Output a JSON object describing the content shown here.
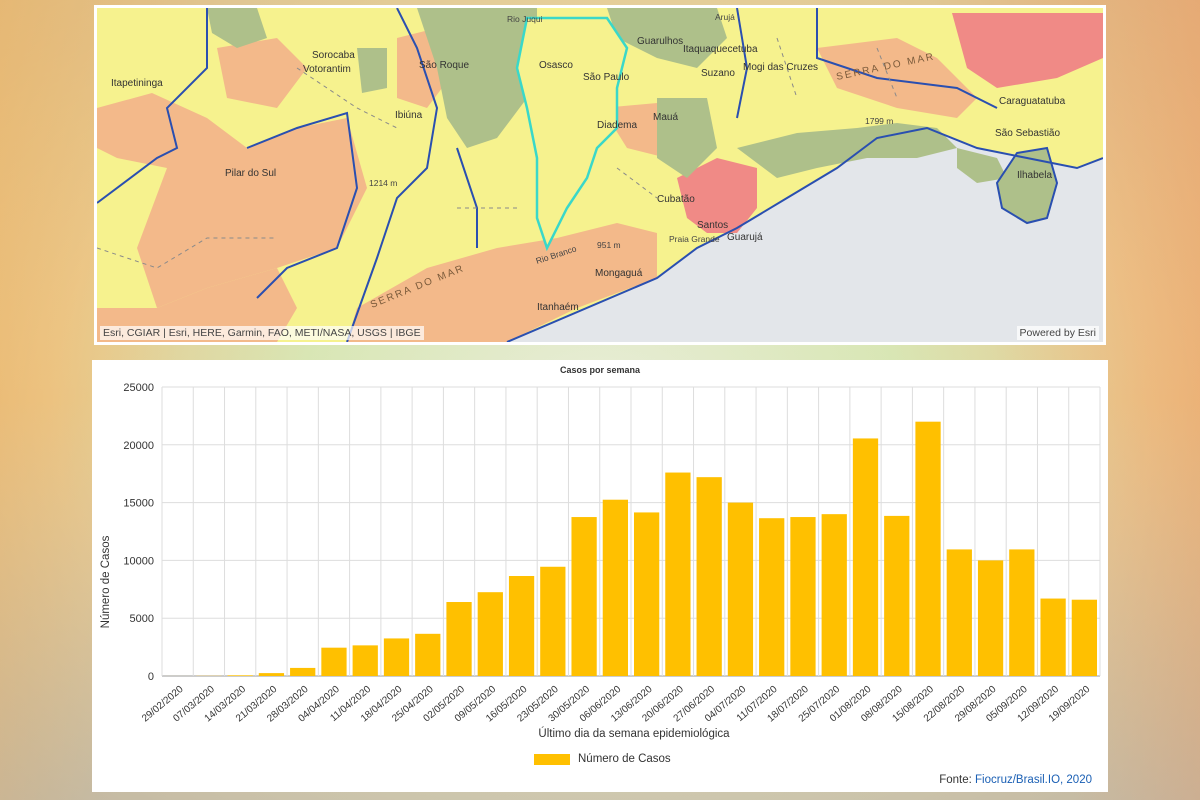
{
  "map": {
    "attribution": "Esri, CGIAR | Esri, HERE, Garmin, FAO, METI/NASA, USGS | IBGE",
    "powered_by": "Powered by Esri",
    "places": [
      "Itapetininga",
      "Sorocaba",
      "Votorantim",
      "São Roque",
      "Ibiúna",
      "Pilar do Sul",
      "Osasco",
      "São Paulo",
      "Guarulhos",
      "Arujá",
      "Itaquaquecetuba",
      "Suzano",
      "Mogi das Cruzes",
      "Diadema",
      "Mauá",
      "Cubatão",
      "Santos",
      "Guarujá",
      "Praia Grande",
      "Mongaguá",
      "Itanhaém",
      "Caraguatatuba",
      "São Sebastião",
      "Ilhabela",
      "Rio Juqui"
    ],
    "relief_labels": [
      "SERRA DO MAR",
      "SERRA DO MAR",
      "1214 m",
      "951 m",
      "1799 m",
      "Rio Branco"
    ],
    "colors": {
      "yellow": "#f6f28e",
      "orange": "#f3b98a",
      "green": "#aec08a",
      "red": "#f08a86",
      "sea": "#e3e6ea",
      "border_state": "#2a4fb0",
      "highlight": "#3ad8c9"
    }
  },
  "chart_data": {
    "type": "bar",
    "title": "Casos por semana",
    "xlabel": "Último dia da semana epidemiológica",
    "ylabel": "Número de Casos",
    "ylim": [
      0,
      25000
    ],
    "yticks": [
      0,
      5000,
      10000,
      15000,
      20000,
      25000
    ],
    "grid": true,
    "legend_position": "bottom",
    "bar_color": "#FFC000",
    "categories": [
      "29/02/2020",
      "07/03/2020",
      "14/03/2020",
      "21/03/2020",
      "28/03/2020",
      "04/04/2020",
      "11/04/2020",
      "18/04/2020",
      "25/04/2020",
      "02/05/2020",
      "09/05/2020",
      "16/05/2020",
      "23/05/2020",
      "30/05/2020",
      "06/06/2020",
      "13/06/2020",
      "20/06/2020",
      "27/06/2020",
      "04/07/2020",
      "11/07/2020",
      "18/07/2020",
      "25/07/2020",
      "01/08/2020",
      "08/08/2020",
      "15/08/2020",
      "22/08/2020",
      "29/08/2020",
      "05/09/2020",
      "12/09/2020",
      "19/09/2020"
    ],
    "series": [
      {
        "name": "Número de Casos",
        "values": [
          2,
          15,
          60,
          250,
          700,
          2450,
          2650,
          3250,
          3650,
          6400,
          7250,
          8650,
          9450,
          13750,
          15250,
          14150,
          17600,
          17200,
          15000,
          13650,
          13750,
          14000,
          20550,
          13850,
          22000,
          10950,
          10000,
          10950,
          6700,
          6600
        ]
      }
    ],
    "source_label": "Fonte:",
    "source_link": "Fiocruz/Brasil.IO, 2020"
  }
}
